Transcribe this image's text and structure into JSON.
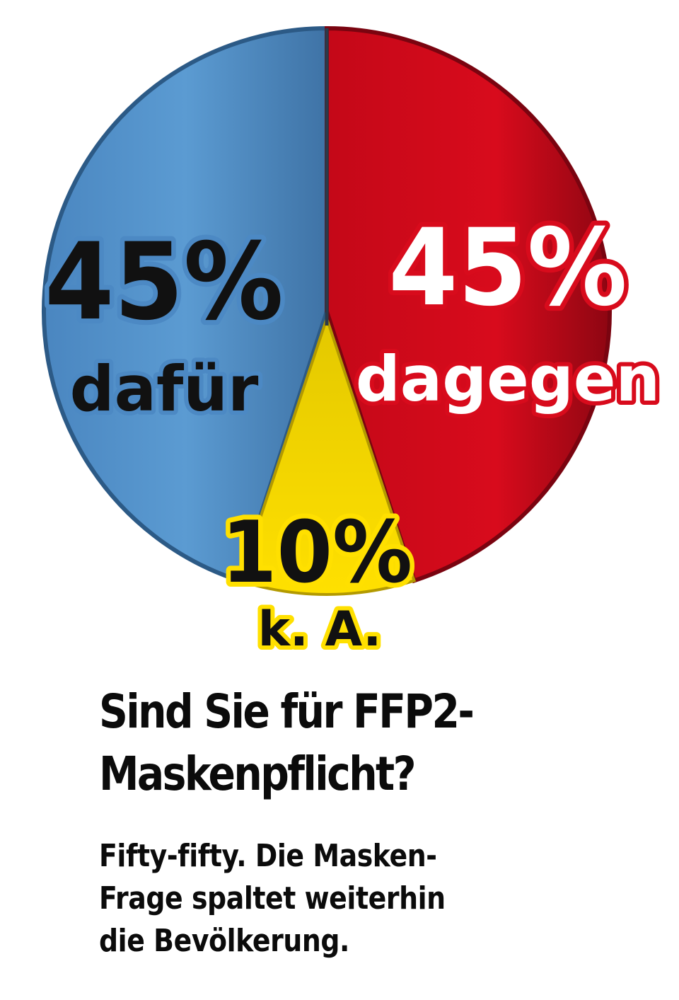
{
  "chart_data": {
    "type": "pie",
    "title": "Sind Sie für FFP2-Maskenpflicht?",
    "subtitle": "Fifty-fifty. Die Masken-Frage spaltet weiterhin die Bevölkerung.",
    "slices": [
      {
        "value": 45,
        "percent_label": "45%",
        "label": "dafür",
        "color": "#5b9bd2"
      },
      {
        "value": 45,
        "percent_label": "45%",
        "label": "dagegen",
        "color": "#d80b1c"
      },
      {
        "value": 10,
        "percent_label": "10%",
        "label": "k. A.",
        "color": "#ffe000"
      }
    ]
  },
  "headline_lines": [
    "Sind Sie für FFP2-",
    "Maskenpflicht?"
  ],
  "subline_lines": [
    "Fifty-fifty. Die Masken-",
    "Frage spaltet weiterhin",
    "die Bevölkerung."
  ]
}
